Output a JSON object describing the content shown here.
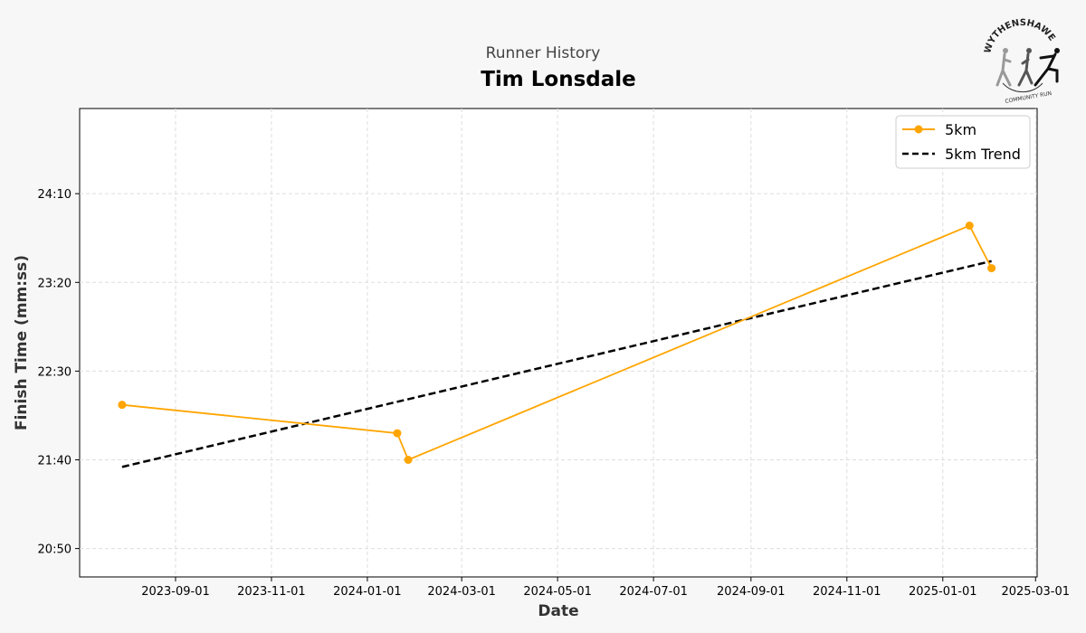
{
  "header": {
    "subtitle": "Runner History",
    "title": "Tim Lonsdale",
    "logo_text": "WYTHENSHAWE COMMUNITY RUN"
  },
  "chart_data": {
    "type": "line",
    "title": "Tim Lonsdale",
    "subtitle": "Runner History",
    "xlabel": "Date",
    "ylabel": "Finish Time (mm:ss)",
    "xlim": [
      "2023-07-02",
      "2025-03-02"
    ],
    "ylim": [
      "20:34",
      "24:58"
    ],
    "x_ticks": [
      "2023-09-01",
      "2023-11-01",
      "2024-01-01",
      "2024-03-01",
      "2024-05-01",
      "2024-07-01",
      "2024-09-01",
      "2024-11-01",
      "2025-01-01",
      "2025-03-01"
    ],
    "y_ticks": [
      "20:50",
      "21:40",
      "22:30",
      "23:20",
      "24:10"
    ],
    "grid": true,
    "legend_position": "top-right",
    "series": [
      {
        "name": "5km",
        "color": "#ffa500",
        "style": "solid-with-markers",
        "x": [
          "2023-07-29",
          "2024-01-20",
          "2024-01-27",
          "2025-01-18",
          "2025-02-01"
        ],
        "y": [
          "22:11",
          "21:55",
          "21:40",
          "23:52",
          "23:28"
        ]
      },
      {
        "name": "5km Trend",
        "color": "#000000",
        "style": "dashed",
        "x": [
          "2023-07-29",
          "2025-02-01"
        ],
        "y": [
          "21:36",
          "23:32"
        ]
      }
    ]
  }
}
